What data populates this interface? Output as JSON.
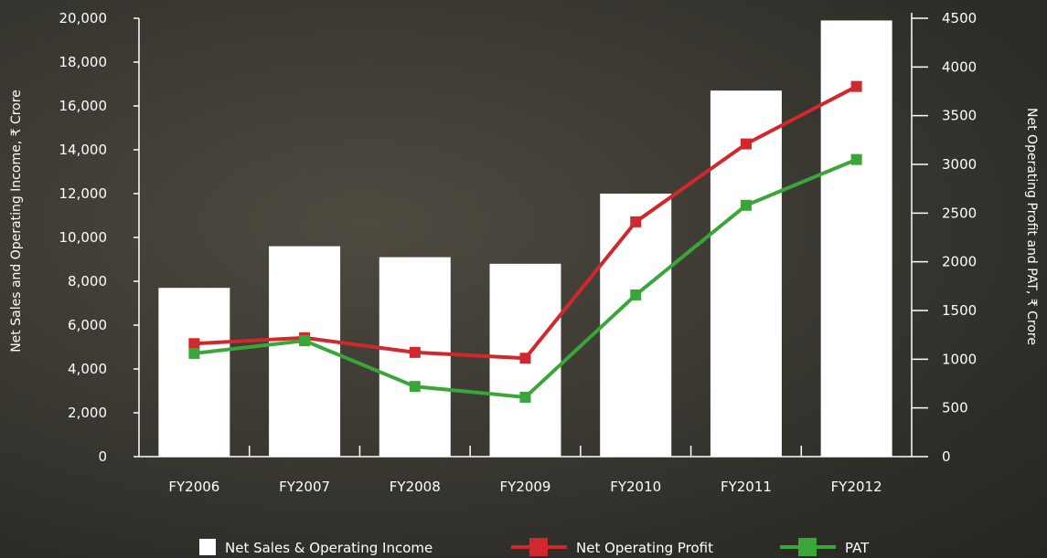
{
  "chart_data": {
    "type": "bar",
    "categories": [
      "FY2006",
      "FY2007",
      "FY2008",
      "FY2009",
      "FY2010",
      "FY2011",
      "FY2012"
    ],
    "y_left": {
      "label": "Net Sales and Operating Income, ₹ Crore",
      "ylim": [
        0,
        20000
      ],
      "ticks": [
        0,
        2000,
        4000,
        6000,
        8000,
        10000,
        12000,
        14000,
        16000,
        18000,
        20000
      ],
      "tick_labels": [
        "0",
        "2,000",
        "4,000",
        "6,000",
        "8,000",
        "10,000",
        "12,000",
        "14,000",
        "16,000",
        "18,000",
        "20,000"
      ]
    },
    "y_right": {
      "label": "Net Operating Profit and PAT, ₹ Crore",
      "ylim": [
        0,
        4500
      ],
      "ticks": [
        0,
        500,
        1000,
        1500,
        2000,
        2500,
        3000,
        3500,
        4000,
        4500
      ],
      "tick_labels": [
        "0",
        "500",
        "1000",
        "1500",
        "2000",
        "2500",
        "3000",
        "3500",
        "4000",
        "4500"
      ]
    },
    "series": [
      {
        "name": "Net Sales & Operating Income",
        "type": "bar",
        "axis": "left",
        "color": "#ffffff",
        "values": [
          7700,
          9600,
          9100,
          8800,
          12000,
          16700,
          19900
        ]
      },
      {
        "name": "Net Operating Profit",
        "type": "line",
        "axis": "right",
        "color": "#d0282c",
        "values": [
          1160,
          1220,
          1070,
          1010,
          2410,
          3210,
          3800
        ]
      },
      {
        "name": "PAT",
        "type": "line",
        "axis": "right",
        "color": "#3aa63a",
        "values": [
          1060,
          1190,
          720,
          610,
          1660,
          2580,
          3050
        ]
      }
    ],
    "grid": false,
    "legend_position": "bottom"
  }
}
